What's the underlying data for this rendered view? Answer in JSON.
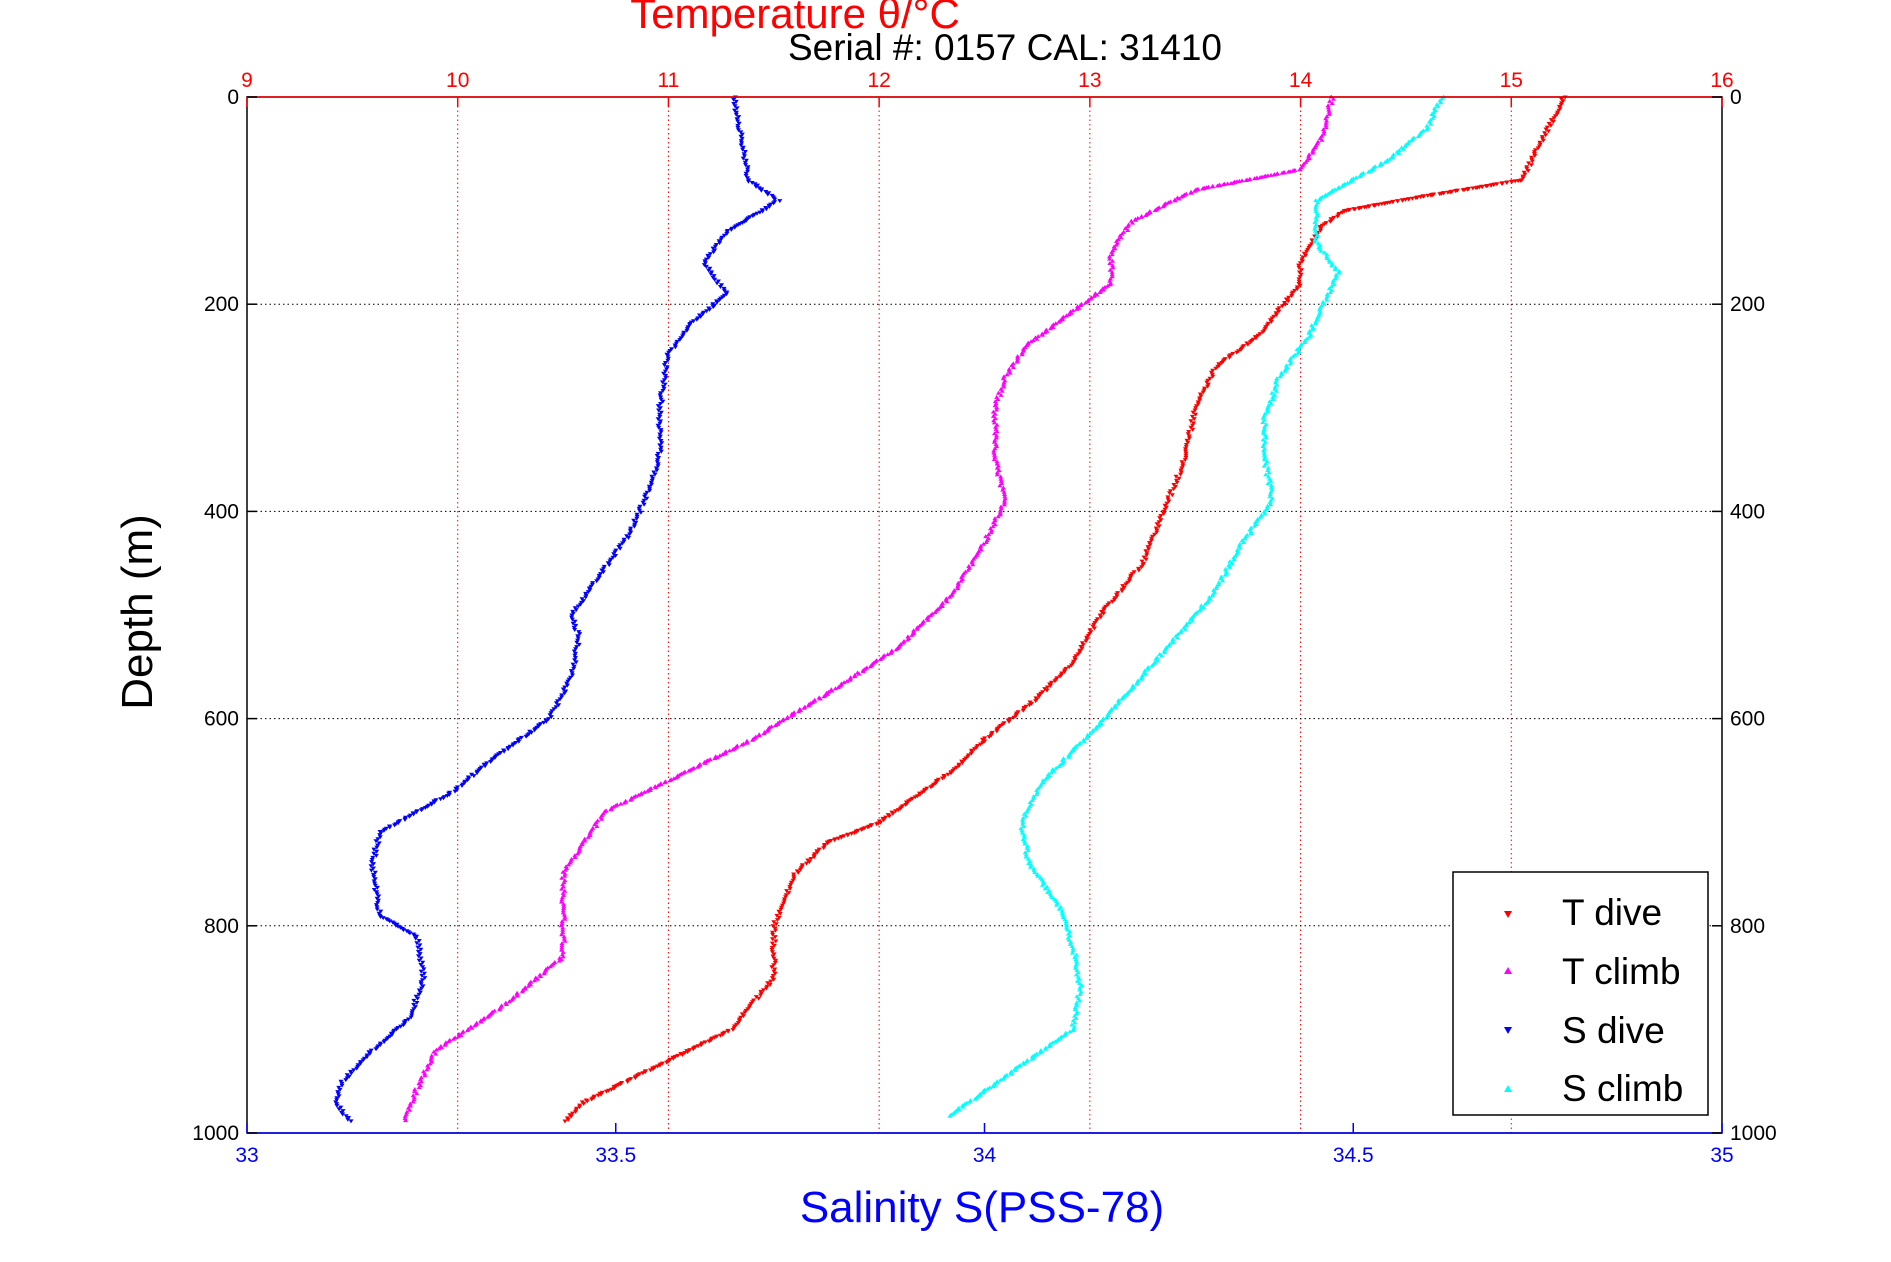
{
  "chart_data": {
    "type": "scatter",
    "title": "Temperature θ/°C",
    "subtitle": "Serial #: 0157  CAL: 31410",
    "xlabel": "Salinity S(PSS-78)",
    "x2label": "Temperature θ/°C",
    "ylabel": "Depth (m)",
    "xlim": [
      33,
      35
    ],
    "x2lim": [
      9,
      16
    ],
    "ylim": [
      1000,
      0
    ],
    "y_inverted": true,
    "xticks": [
      "33",
      "33.5",
      "34",
      "34.5",
      "35"
    ],
    "x2ticks": [
      "9",
      "10",
      "11",
      "12",
      "13",
      "14",
      "15",
      "16"
    ],
    "yticks": [
      "0",
      "200",
      "400",
      "600",
      "800",
      "1000"
    ],
    "grid": true,
    "legend_position": "bottom-right",
    "colors": {
      "temperature_axis": "#ff0000",
      "salinity_axis": "#0000ff"
    },
    "series": [
      {
        "name": "T dive",
        "axis": "temperature",
        "color": "#ff0000",
        "marker": "triangle-down",
        "points": [
          [
            15.25,
            0
          ],
          [
            15.2,
            20
          ],
          [
            15.15,
            40
          ],
          [
            15.1,
            60
          ],
          [
            15.05,
            80
          ],
          [
            14.6,
            95
          ],
          [
            14.2,
            110
          ],
          [
            14.1,
            125
          ],
          [
            14.0,
            160
          ],
          [
            14.0,
            180
          ],
          [
            13.8,
            230
          ],
          [
            13.6,
            260
          ],
          [
            13.5,
            300
          ],
          [
            13.45,
            350
          ],
          [
            13.35,
            400
          ],
          [
            13.25,
            450
          ],
          [
            13.05,
            500
          ],
          [
            12.9,
            550
          ],
          [
            12.75,
            580
          ],
          [
            12.5,
            620
          ],
          [
            12.35,
            650
          ],
          [
            12.0,
            700
          ],
          [
            11.75,
            720
          ],
          [
            11.6,
            750
          ],
          [
            11.5,
            800
          ],
          [
            11.5,
            850
          ],
          [
            11.3,
            900
          ],
          [
            10.9,
            940
          ],
          [
            10.6,
            970
          ],
          [
            10.5,
            990
          ]
        ]
      },
      {
        "name": "T climb",
        "axis": "temperature",
        "color": "#ff00ff",
        "marker": "triangle-up",
        "points": [
          [
            14.15,
            0
          ],
          [
            14.1,
            40
          ],
          [
            14.0,
            70
          ],
          [
            13.5,
            90
          ],
          [
            13.2,
            120
          ],
          [
            13.1,
            150
          ],
          [
            13.1,
            180
          ],
          [
            12.9,
            210
          ],
          [
            12.7,
            240
          ],
          [
            12.6,
            270
          ],
          [
            12.55,
            300
          ],
          [
            12.55,
            350
          ],
          [
            12.6,
            390
          ],
          [
            12.5,
            430
          ],
          [
            12.35,
            480
          ],
          [
            12.1,
            530
          ],
          [
            11.8,
            570
          ],
          [
            11.4,
            620
          ],
          [
            11.0,
            660
          ],
          [
            10.7,
            690
          ],
          [
            10.6,
            720
          ],
          [
            10.5,
            750
          ],
          [
            10.5,
            800
          ],
          [
            10.5,
            830
          ],
          [
            10.2,
            880
          ],
          [
            9.9,
            920
          ],
          [
            9.8,
            960
          ],
          [
            9.75,
            990
          ]
        ]
      },
      {
        "name": "S dive",
        "axis": "salinity",
        "color": "#0000ff",
        "marker": "triangle-down",
        "points": [
          [
            33.66,
            0
          ],
          [
            33.67,
            40
          ],
          [
            33.68,
            80
          ],
          [
            33.72,
            100
          ],
          [
            33.65,
            130
          ],
          [
            33.62,
            160
          ],
          [
            33.65,
            190
          ],
          [
            33.6,
            220
          ],
          [
            33.57,
            250
          ],
          [
            33.56,
            300
          ],
          [
            33.56,
            340
          ],
          [
            33.55,
            370
          ],
          [
            33.52,
            420
          ],
          [
            33.48,
            460
          ],
          [
            33.44,
            500
          ],
          [
            33.45,
            520
          ],
          [
            33.44,
            560
          ],
          [
            33.41,
            600
          ],
          [
            33.33,
            640
          ],
          [
            33.28,
            670
          ],
          [
            33.18,
            710
          ],
          [
            33.17,
            740
          ],
          [
            33.18,
            790
          ],
          [
            33.23,
            810
          ],
          [
            33.24,
            850
          ],
          [
            33.22,
            890
          ],
          [
            33.17,
            920
          ],
          [
            33.13,
            950
          ],
          [
            33.12,
            970
          ],
          [
            33.14,
            990
          ]
        ]
      },
      {
        "name": "S climb",
        "axis": "salinity",
        "color": "#00ffff",
        "marker": "triangle-up",
        "points": [
          [
            34.62,
            0
          ],
          [
            34.6,
            30
          ],
          [
            34.55,
            60
          ],
          [
            34.5,
            80
          ],
          [
            34.45,
            100
          ],
          [
            34.45,
            140
          ],
          [
            34.48,
            170
          ],
          [
            34.46,
            200
          ],
          [
            34.44,
            230
          ],
          [
            34.4,
            270
          ],
          [
            34.38,
            310
          ],
          [
            34.38,
            350
          ],
          [
            34.39,
            390
          ],
          [
            34.35,
            430
          ],
          [
            34.31,
            480
          ],
          [
            34.25,
            530
          ],
          [
            34.2,
            570
          ],
          [
            34.15,
            610
          ],
          [
            34.08,
            660
          ],
          [
            34.05,
            700
          ],
          [
            34.06,
            740
          ],
          [
            34.1,
            780
          ],
          [
            34.12,
            820
          ],
          [
            34.13,
            860
          ],
          [
            34.12,
            900
          ],
          [
            34.06,
            930
          ],
          [
            34.0,
            960
          ],
          [
            33.95,
            985
          ]
        ]
      }
    ]
  }
}
